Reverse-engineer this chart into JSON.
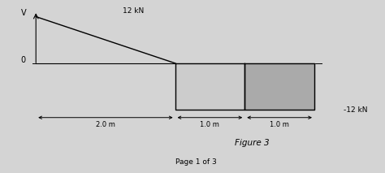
{
  "title": "Figure 3",
  "label_V": "V",
  "label_0": "0",
  "label_12kN_top": "12 kN",
  "label_neg12kN": "-12 kN",
  "dim_2m": "2.0 m",
  "dim_1m_mid": "1.0 m",
  "dim_1m_right": "1.0 m",
  "fill_color_triangle": "#cccccc",
  "fill_color_rect_left": "#cccccc",
  "fill_color_rect_right": "#aaaaaa",
  "outline_color": "#000000",
  "fig_bg_color": "#d4d4d4",
  "ax_bg_color": "#d4d4d4",
  "fig_width": 4.74,
  "fig_height": 2.13,
  "dpi": 100
}
